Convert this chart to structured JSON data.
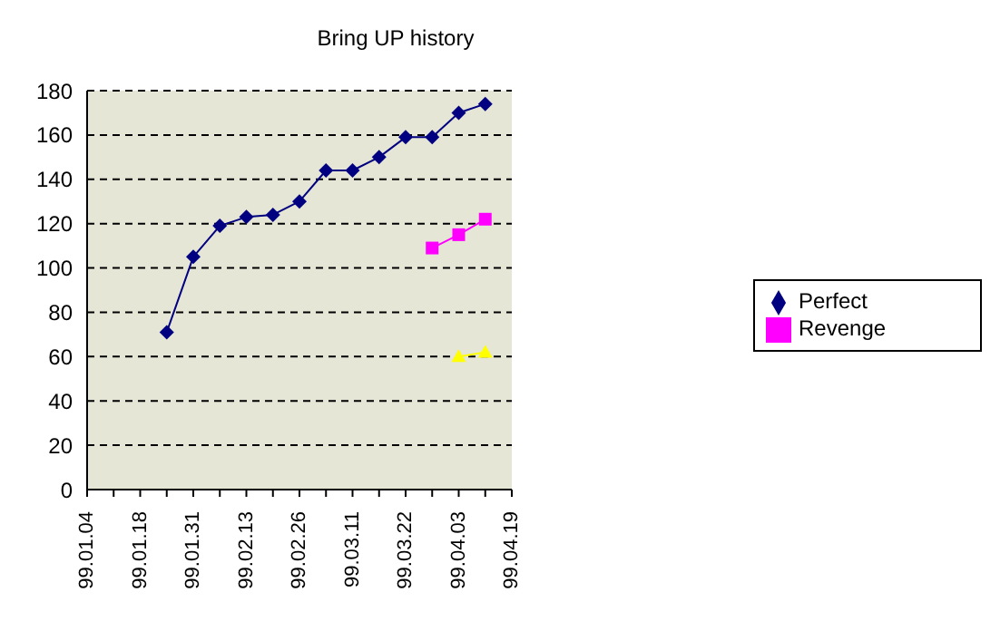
{
  "chart_data": {
    "type": "line",
    "title": "Bring UP history",
    "categories": [
      "99.01.04",
      null,
      "99.01.18",
      null,
      "99.01.31",
      null,
      "99.02.13",
      null,
      "99.02.26",
      null,
      "99.03.11",
      null,
      "99.03.22",
      null,
      "99.04.03",
      null,
      "99.04.19"
    ],
    "series": [
      {
        "name": "Perfect",
        "color": "#000080",
        "marker": "diamond",
        "values": [
          null,
          null,
          null,
          71,
          105,
          119,
          123,
          124,
          130,
          144,
          144,
          150,
          159,
          159,
          170,
          174,
          null
        ]
      },
      {
        "name": "Revenge",
        "color": "#ff00ff",
        "marker": "square",
        "values": [
          null,
          null,
          null,
          null,
          null,
          null,
          null,
          null,
          null,
          null,
          null,
          null,
          null,
          109,
          115,
          122,
          null
        ]
      },
      {
        "color": "#ffff00",
        "marker": "triangle",
        "values": [
          null,
          null,
          null,
          null,
          null,
          null,
          null,
          null,
          null,
          null,
          null,
          null,
          null,
          null,
          60,
          62,
          null
        ]
      }
    ],
    "ylim": [
      0,
      180
    ],
    "yticks": [
      0,
      20,
      40,
      60,
      80,
      100,
      120,
      140,
      160,
      180
    ],
    "grid": "y",
    "legend": "right",
    "line_style": "solid"
  }
}
